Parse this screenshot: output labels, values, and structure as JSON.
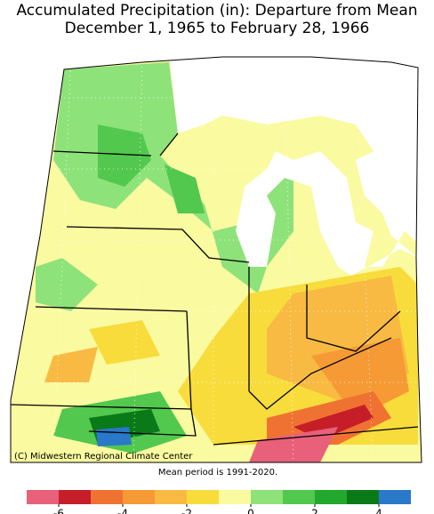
{
  "header": {
    "title_line1": "Accumulated Precipitation (in): Departure from Mean",
    "title_line2": "December 1, 1965 to February 28, 1966"
  },
  "map": {
    "credit": "(C) Midwestern Regional Climate Center"
  },
  "footer": {
    "note": "Mean period is 1991-2020."
  },
  "legend": {
    "bins": [
      -7,
      -6,
      -5,
      -4,
      -3,
      -2,
      -1,
      0,
      1,
      2,
      3,
      4,
      5
    ],
    "colors": [
      "#e8607a",
      "#c61e28",
      "#f07232",
      "#f59a35",
      "#f8ba42",
      "#f8dc3c",
      "#fafaa0",
      "#8ee27a",
      "#52c84e",
      "#22a82c",
      "#0a7a18",
      "#2a78c8"
    ],
    "ticks": [
      -6,
      -4,
      -2,
      0,
      2,
      4
    ]
  }
}
